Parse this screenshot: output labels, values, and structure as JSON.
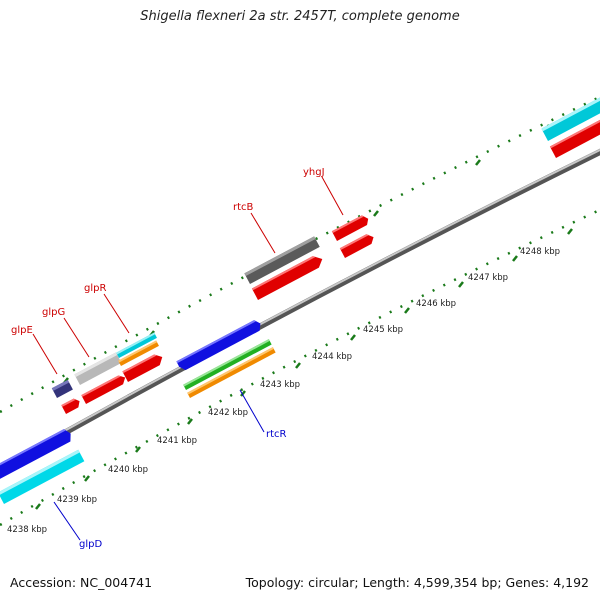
{
  "header": {
    "title": "Shigella flexneri 2a str. 2457T, complete genome"
  },
  "footer": {
    "accession": "Accession: NC_004741",
    "stats": "Topology: circular; Length: 4,599,354 bp; Genes: 4,192"
  },
  "colors": {
    "label_top": "#cc0000",
    "label_bottom": "#0000cc",
    "tick": "#1a7a1a",
    "backbone": "#888888"
  },
  "ticks": [
    {
      "label": "4238 kbp"
    },
    {
      "label": "4239 kbp"
    },
    {
      "label": "4240 kbp"
    },
    {
      "label": "4241 kbp"
    },
    {
      "label": "4242 kbp"
    },
    {
      "label": "4243 kbp"
    },
    {
      "label": "4244 kbp"
    },
    {
      "label": "4245 kbp"
    },
    {
      "label": "4246 kbp"
    },
    {
      "label": "4247 kbp"
    },
    {
      "label": "4248 kbp"
    }
  ],
  "gene_labels": [
    {
      "text": "glpE",
      "color": "#cc0000"
    },
    {
      "text": "glpG",
      "color": "#cc0000"
    },
    {
      "text": "glpR",
      "color": "#cc0000"
    },
    {
      "text": "rtcB",
      "color": "#cc0000"
    },
    {
      "text": "yhgJ",
      "color": "#cc0000"
    },
    {
      "text": "rtcR",
      "color": "#0000cc"
    },
    {
      "text": "glpD",
      "color": "#0000cc"
    }
  ]
}
